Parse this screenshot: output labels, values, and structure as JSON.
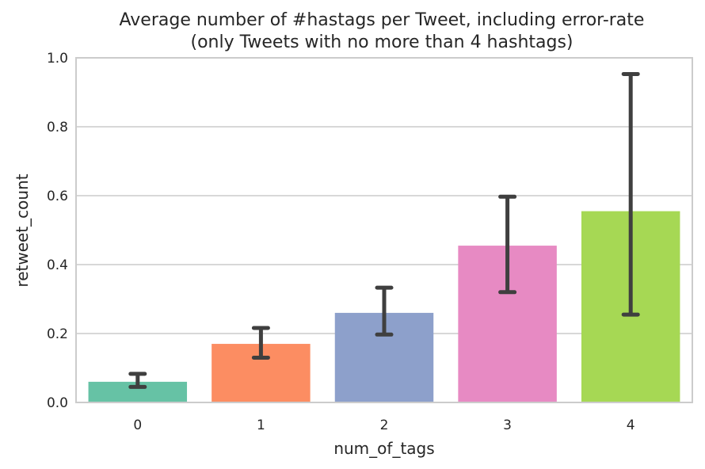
{
  "chart_data": {
    "type": "bar",
    "title": "Average number of #hastags per Tweet, including error-rate",
    "subtitle": "(only Tweets with no more than 4 hashtags)",
    "xlabel": "num_of_tags",
    "ylabel": "retweet_count",
    "categories": [
      "0",
      "1",
      "2",
      "3",
      "4"
    ],
    "values": [
      0.06,
      0.17,
      0.26,
      0.455,
      0.555
    ],
    "error_low": [
      0.045,
      0.13,
      0.197,
      0.32,
      0.255
    ],
    "error_high": [
      0.083,
      0.216,
      0.333,
      0.597,
      0.953
    ],
    "ylim": [
      0,
      1.0
    ],
    "yticks": [
      "0.0",
      "0.2",
      "0.4",
      "0.6",
      "0.8",
      "1.0"
    ],
    "grid": true,
    "colors": [
      "#66c2a5",
      "#fc8d62",
      "#8da0cb",
      "#e78ac3",
      "#a6d854"
    ],
    "error_color": "#3f3f3f",
    "grid_color": "#cccccc"
  }
}
